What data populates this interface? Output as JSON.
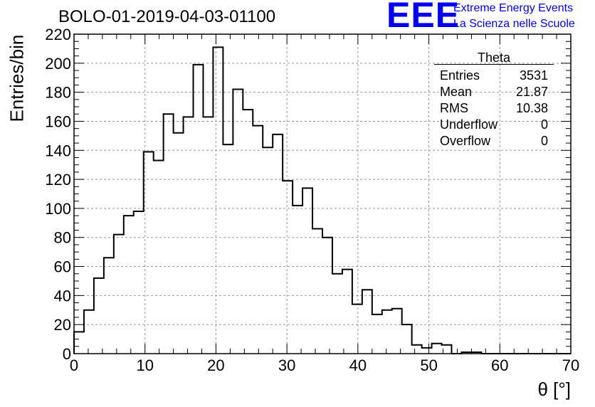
{
  "title": "BOLO-01-2019-04-03-01100",
  "logo": {
    "mark": "EEE",
    "line1": "Extreme Energy Events",
    "line2": "La Scienza nelle Scuole",
    "color": "#0000ee"
  },
  "stats": {
    "title": "Theta",
    "rows": [
      {
        "label": "Entries",
        "value": "3531"
      },
      {
        "label": "Mean",
        "value": "21.87"
      },
      {
        "label": "RMS",
        "value": "10.38"
      },
      {
        "label": "Underflow",
        "value": "0"
      },
      {
        "label": "Overflow",
        "value": "0"
      }
    ]
  },
  "chart_data": {
    "type": "bar",
    "style": "step-histogram",
    "title": "BOLO-01-2019-04-03-01100",
    "xlabel": "θ [°]",
    "ylabel": "Entries/bin",
    "xlim": [
      0,
      70
    ],
    "ylim": [
      0,
      220
    ],
    "grid": true,
    "legend": "stats box top-right",
    "bin_width": 1.4,
    "x_ticks": [
      0,
      10,
      20,
      30,
      40,
      50,
      60,
      70
    ],
    "y_ticks": [
      0,
      20,
      40,
      60,
      80,
      100,
      120,
      140,
      160,
      180,
      200,
      220
    ],
    "values": [
      15,
      30,
      52,
      66,
      82,
      95,
      98,
      139,
      133,
      165,
      152,
      163,
      199,
      163,
      211,
      144,
      182,
      168,
      157,
      142,
      151,
      119,
      102,
      114,
      86,
      80,
      55,
      58,
      34,
      44,
      27,
      30,
      31,
      20,
      6,
      4,
      7,
      6,
      0,
      1,
      1,
      0,
      0,
      0,
      0,
      0,
      0,
      0,
      0,
      0
    ],
    "line_color": "#000000"
  }
}
